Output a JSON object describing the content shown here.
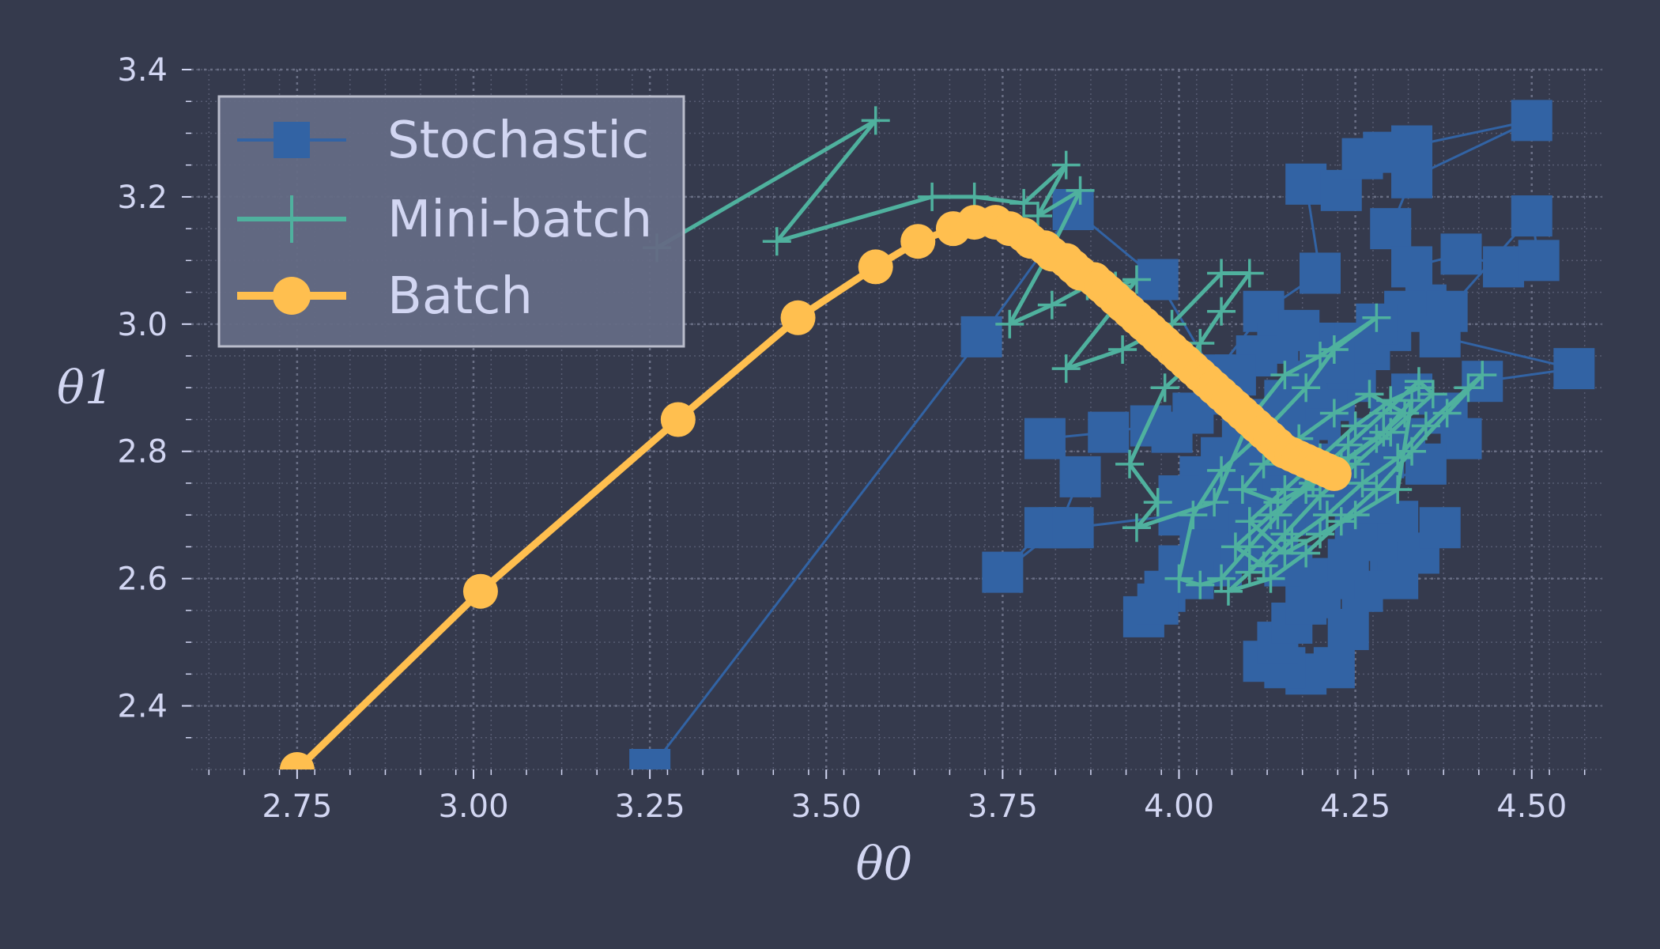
{
  "chart_data": {
    "type": "line",
    "title": "",
    "xlabel": "θ0",
    "ylabel": "θ1",
    "xlim": [
      2.6,
      4.6
    ],
    "ylim": [
      2.3,
      3.4
    ],
    "grid": true,
    "minor_grid": true,
    "legend_position": "top-left",
    "x_ticks": [
      "2.75",
      "3.00",
      "3.25",
      "3.50",
      "3.75",
      "4.00",
      "4.25",
      "4.50"
    ],
    "y_ticks": [
      "2.4",
      "2.6",
      "2.8",
      "3.0",
      "3.2",
      "3.4"
    ],
    "colors": {
      "background": "#353a4d",
      "text": "#d2d6f2",
      "stochastic": "#3263a4",
      "minibatch": "#4fb19e",
      "batch": "#ffbf4f",
      "legend_bg": "#646a84",
      "legend_border": "#b9bccb"
    },
    "series": [
      {
        "name": "Stochastic",
        "marker": "square",
        "points": [
          [
            3.25,
            2.3
          ],
          [
            3.72,
            2.98
          ],
          [
            3.85,
            3.18
          ],
          [
            3.97,
            3.07
          ],
          [
            4.05,
            2.92
          ],
          [
            4.12,
            3.02
          ],
          [
            4.2,
            3.08
          ],
          [
            4.18,
            3.22
          ],
          [
            4.23,
            3.21
          ],
          [
            4.26,
            3.26
          ],
          [
            4.29,
            3.27
          ],
          [
            4.33,
            3.28
          ],
          [
            4.5,
            3.32
          ],
          [
            4.33,
            3.23
          ],
          [
            4.3,
            3.15
          ],
          [
            4.35,
            3.03
          ],
          [
            4.33,
            3.09
          ],
          [
            4.4,
            3.11
          ],
          [
            4.46,
            3.09
          ],
          [
            4.51,
            3.1
          ],
          [
            4.5,
            3.17
          ],
          [
            4.38,
            3.02
          ],
          [
            4.37,
            2.98
          ],
          [
            4.56,
            2.93
          ],
          [
            4.43,
            2.91
          ],
          [
            4.38,
            2.86
          ],
          [
            4.33,
            2.89
          ],
          [
            4.4,
            2.82
          ],
          [
            4.35,
            2.78
          ],
          [
            4.28,
            2.74
          ],
          [
            4.25,
            2.67
          ],
          [
            4.3,
            2.64
          ],
          [
            4.34,
            2.64
          ],
          [
            4.37,
            2.68
          ],
          [
            4.31,
            2.6
          ],
          [
            4.26,
            2.58
          ],
          [
            4.24,
            2.52
          ],
          [
            4.22,
            2.46
          ],
          [
            4.18,
            2.45
          ],
          [
            4.15,
            2.46
          ],
          [
            4.12,
            2.47
          ],
          [
            4.14,
            2.5
          ],
          [
            4.16,
            2.53
          ],
          [
            4.18,
            2.56
          ],
          [
            4.2,
            2.57
          ],
          [
            4.22,
            2.6
          ],
          [
            4.15,
            2.62
          ],
          [
            4.1,
            2.64
          ],
          [
            4.06,
            2.62
          ],
          [
            4.02,
            2.6
          ],
          [
            3.98,
            2.58
          ],
          [
            3.95,
            2.54
          ],
          [
            3.97,
            2.56
          ],
          [
            4.0,
            2.62
          ],
          [
            4.03,
            2.66
          ],
          [
            4.06,
            2.7
          ],
          [
            4.09,
            2.73
          ],
          [
            4.11,
            2.76
          ],
          [
            4.14,
            2.79
          ],
          [
            4.17,
            2.82
          ],
          [
            4.2,
            2.85
          ],
          [
            4.22,
            2.88
          ],
          [
            4.25,
            2.91
          ],
          [
            4.23,
            2.94
          ],
          [
            4.2,
            2.97
          ],
          [
            4.17,
            2.99
          ],
          [
            4.14,
            2.97
          ],
          [
            4.11,
            2.95
          ],
          [
            4.08,
            2.92
          ],
          [
            4.05,
            2.89
          ],
          [
            4.02,
            2.86
          ],
          [
            3.99,
            2.83
          ],
          [
            3.96,
            2.84
          ],
          [
            3.9,
            2.83
          ],
          [
            3.81,
            2.82
          ],
          [
            3.86,
            2.76
          ],
          [
            3.83,
            2.68
          ],
          [
            3.75,
            2.61
          ],
          [
            3.81,
            2.68
          ],
          [
            3.85,
            2.68
          ],
          [
            4.0,
            2.7
          ],
          [
            4.05,
            2.74
          ],
          [
            4.1,
            2.78
          ],
          [
            4.13,
            2.81
          ],
          [
            4.16,
            2.84
          ],
          [
            4.18,
            2.87
          ],
          [
            4.21,
            2.9
          ],
          [
            4.24,
            2.93
          ],
          [
            4.27,
            2.96
          ],
          [
            4.3,
            2.99
          ],
          [
            4.32,
            3.02
          ],
          [
            4.28,
            3.0
          ],
          [
            4.25,
            2.97
          ],
          [
            4.22,
            2.94
          ],
          [
            4.18,
            2.91
          ],
          [
            4.15,
            2.88
          ],
          [
            4.12,
            2.85
          ],
          [
            4.09,
            2.82
          ],
          [
            4.06,
            2.79
          ],
          [
            4.03,
            2.76
          ],
          [
            4.0,
            2.73
          ],
          [
            4.04,
            2.71
          ],
          [
            4.08,
            2.68
          ],
          [
            4.12,
            2.65
          ],
          [
            4.16,
            2.62
          ],
          [
            4.2,
            2.6
          ],
          [
            4.24,
            2.63
          ],
          [
            4.28,
            2.66
          ],
          [
            4.31,
            2.69
          ],
          [
            4.27,
            2.72
          ],
          [
            4.23,
            2.75
          ],
          [
            4.19,
            2.78
          ],
          [
            4.15,
            2.8
          ],
          [
            4.11,
            2.77
          ],
          [
            4.07,
            2.74
          ],
          [
            4.1,
            2.7
          ],
          [
            4.14,
            2.68
          ],
          [
            4.18,
            2.7
          ],
          [
            4.22,
            2.73
          ],
          [
            4.26,
            2.76
          ],
          [
            4.29,
            2.79
          ],
          [
            4.32,
            2.82
          ],
          [
            4.3,
            2.85
          ],
          [
            4.27,
            2.82
          ],
          [
            4.24,
            2.79
          ],
          [
            4.21,
            2.76
          ],
          [
            4.18,
            2.73
          ],
          [
            4.15,
            2.71
          ],
          [
            4.12,
            2.73
          ],
          [
            4.09,
            2.75
          ]
        ]
      },
      {
        "name": "Mini-batch",
        "marker": "plus",
        "points": [
          [
            3.26,
            3.12
          ],
          [
            3.57,
            3.32
          ],
          [
            3.43,
            3.13
          ],
          [
            3.65,
            3.2
          ],
          [
            3.71,
            3.2
          ],
          [
            3.78,
            3.19
          ],
          [
            3.84,
            3.25
          ],
          [
            3.8,
            3.17
          ],
          [
            3.86,
            3.21
          ],
          [
            3.82,
            3.12
          ],
          [
            3.76,
            3.0
          ],
          [
            3.82,
            3.03
          ],
          [
            3.87,
            3.06
          ],
          [
            3.91,
            3.06
          ],
          [
            3.94,
            3.07
          ],
          [
            3.84,
            2.93
          ],
          [
            3.92,
            2.96
          ],
          [
            3.99,
            3.0
          ],
          [
            4.06,
            3.08
          ],
          [
            4.1,
            3.08
          ],
          [
            4.06,
            3.02
          ],
          [
            4.03,
            2.97
          ],
          [
            4.01,
            2.93
          ],
          [
            3.98,
            2.9
          ],
          [
            3.93,
            2.78
          ],
          [
            3.97,
            2.72
          ],
          [
            3.94,
            2.68
          ],
          [
            4.05,
            2.72
          ],
          [
            4.1,
            2.85
          ],
          [
            4.15,
            2.92
          ],
          [
            4.2,
            2.95
          ],
          [
            4.28,
            3.01
          ],
          [
            4.22,
            2.96
          ],
          [
            4.18,
            2.9
          ],
          [
            4.12,
            2.83
          ],
          [
            4.06,
            2.77
          ],
          [
            4.02,
            2.7
          ],
          [
            4.0,
            2.6
          ],
          [
            4.03,
            2.59
          ],
          [
            4.06,
            2.6
          ],
          [
            4.1,
            2.65
          ],
          [
            4.14,
            2.7
          ],
          [
            4.19,
            2.76
          ],
          [
            4.24,
            2.81
          ],
          [
            4.29,
            2.86
          ],
          [
            4.34,
            2.91
          ],
          [
            4.36,
            2.89
          ],
          [
            4.3,
            2.83
          ],
          [
            4.25,
            2.78
          ],
          [
            4.2,
            2.73
          ],
          [
            4.15,
            2.67
          ],
          [
            4.1,
            2.61
          ],
          [
            4.07,
            2.58
          ],
          [
            4.13,
            2.6
          ],
          [
            4.18,
            2.64
          ],
          [
            4.23,
            2.69
          ],
          [
            4.28,
            2.74
          ],
          [
            4.33,
            2.8
          ],
          [
            4.38,
            2.86
          ],
          [
            4.43,
            2.92
          ],
          [
            4.41,
            2.9
          ],
          [
            4.35,
            2.84
          ],
          [
            4.31,
            2.79
          ],
          [
            4.26,
            2.75
          ],
          [
            4.21,
            2.7
          ],
          [
            4.16,
            2.66
          ],
          [
            4.12,
            2.62
          ],
          [
            4.08,
            2.65
          ],
          [
            4.13,
            2.7
          ],
          [
            4.18,
            2.74
          ],
          [
            4.23,
            2.78
          ],
          [
            4.28,
            2.82
          ],
          [
            4.32,
            2.86
          ],
          [
            4.27,
            2.89
          ],
          [
            4.22,
            2.86
          ],
          [
            4.17,
            2.82
          ],
          [
            4.12,
            2.78
          ],
          [
            4.09,
            2.74
          ],
          [
            4.14,
            2.72
          ],
          [
            4.19,
            2.75
          ],
          [
            4.24,
            2.79
          ],
          [
            4.29,
            2.83
          ],
          [
            4.33,
            2.88
          ],
          [
            4.31,
            2.74
          ],
          [
            4.25,
            2.7
          ],
          [
            4.2,
            2.67
          ],
          [
            4.15,
            2.64
          ],
          [
            4.1,
            2.69
          ],
          [
            4.15,
            2.74
          ],
          [
            4.2,
            2.79
          ],
          [
            4.25,
            2.84
          ],
          [
            4.3,
            2.88
          ],
          [
            4.34,
            2.9
          ]
        ]
      },
      {
        "name": "Batch",
        "marker": "circle",
        "points": [
          [
            2.75,
            2.3
          ],
          [
            3.01,
            2.58
          ],
          [
            3.29,
            2.85
          ],
          [
            3.46,
            3.01
          ],
          [
            3.57,
            3.09
          ],
          [
            3.63,
            3.13
          ],
          [
            3.68,
            3.15
          ],
          [
            3.71,
            3.16
          ],
          [
            3.74,
            3.16
          ],
          [
            3.76,
            3.15
          ],
          [
            3.78,
            3.14
          ],
          [
            3.79,
            3.13
          ],
          [
            3.81,
            3.12
          ],
          [
            3.82,
            3.11
          ],
          [
            3.84,
            3.1
          ],
          [
            3.85,
            3.09
          ],
          [
            3.86,
            3.08
          ],
          [
            3.88,
            3.07
          ],
          [
            3.89,
            3.06
          ],
          [
            3.9,
            3.05
          ],
          [
            3.91,
            3.04
          ],
          [
            3.92,
            3.03
          ],
          [
            3.93,
            3.02
          ],
          [
            3.94,
            3.01
          ],
          [
            3.95,
            3.0
          ],
          [
            3.96,
            2.99
          ],
          [
            3.97,
            2.98
          ],
          [
            3.98,
            2.97
          ],
          [
            3.99,
            2.96
          ],
          [
            4.0,
            2.95
          ],
          [
            4.01,
            2.94
          ],
          [
            4.02,
            2.93
          ],
          [
            4.03,
            2.92
          ],
          [
            4.04,
            2.91
          ],
          [
            4.05,
            2.9
          ],
          [
            4.06,
            2.89
          ],
          [
            4.07,
            2.88
          ],
          [
            4.08,
            2.87
          ],
          [
            4.09,
            2.86
          ],
          [
            4.1,
            2.85
          ],
          [
            4.11,
            2.84
          ],
          [
            4.12,
            2.83
          ],
          [
            4.13,
            2.82
          ],
          [
            4.14,
            2.81
          ],
          [
            4.15,
            2.8
          ],
          [
            4.16,
            2.795
          ],
          [
            4.17,
            2.79
          ],
          [
            4.18,
            2.785
          ],
          [
            4.19,
            2.78
          ],
          [
            4.2,
            2.775
          ],
          [
            4.21,
            2.77
          ],
          [
            4.22,
            2.765
          ]
        ]
      }
    ]
  }
}
